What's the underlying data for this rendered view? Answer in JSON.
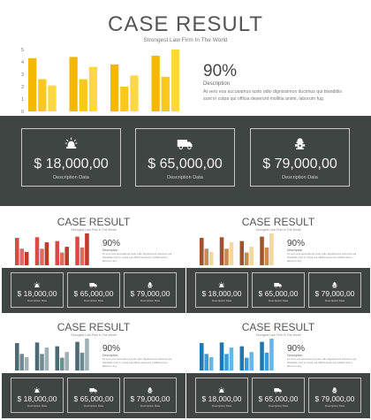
{
  "slide": {
    "title": "CASE RESULT",
    "subtitle": "Strongest Law Firm In The World",
    "percent": "90%",
    "description_label": "Description",
    "description_text": "At vero eos accusamus iusto odio dignissimos ducimus qui blanditiis sunt in culpa qui officia deserunt mollitia animi, laborum fug."
  },
  "cards": [
    {
      "value": "$ 18,000,00",
      "label": "Description Data",
      "icon": "alarm-light-icon"
    },
    {
      "value": "$ 65,000,00",
      "label": "Description Data",
      "icon": "truck-icon"
    },
    {
      "value": "$ 79,000,00",
      "label": "Description Data",
      "icon": "fire-hydrant-icon"
    }
  ],
  "chart_data": {
    "type": "bar",
    "y_ticks": [
      "0",
      "1",
      "2",
      "3",
      "4",
      "5"
    ],
    "ylim": [
      0,
      5
    ],
    "groups": [
      [
        4.3,
        2.6,
        2.1
      ],
      [
        4.4,
        2.6,
        3.6
      ],
      [
        3.8,
        2.0,
        2.9
      ],
      [
        4.5,
        2.8,
        5.0
      ]
    ]
  },
  "themes": {
    "main": [
      "#f5b800",
      "#f8c81c",
      "#ffd740"
    ],
    "red": [
      "#d94a45",
      "#e36a62",
      "#c0392b"
    ],
    "brown": [
      "#a0522d",
      "#c98a50",
      "#f1d7a0"
    ],
    "slate": [
      "#4d6a72",
      "#6f8c93",
      "#9fb1b5"
    ],
    "blue": [
      "#1f78b4",
      "#3d9bd6",
      "#63b8e8"
    ]
  },
  "colors": {
    "band": "#3f4542",
    "card_border": "#c9c9c9",
    "text_light": "#f2f2f2"
  }
}
